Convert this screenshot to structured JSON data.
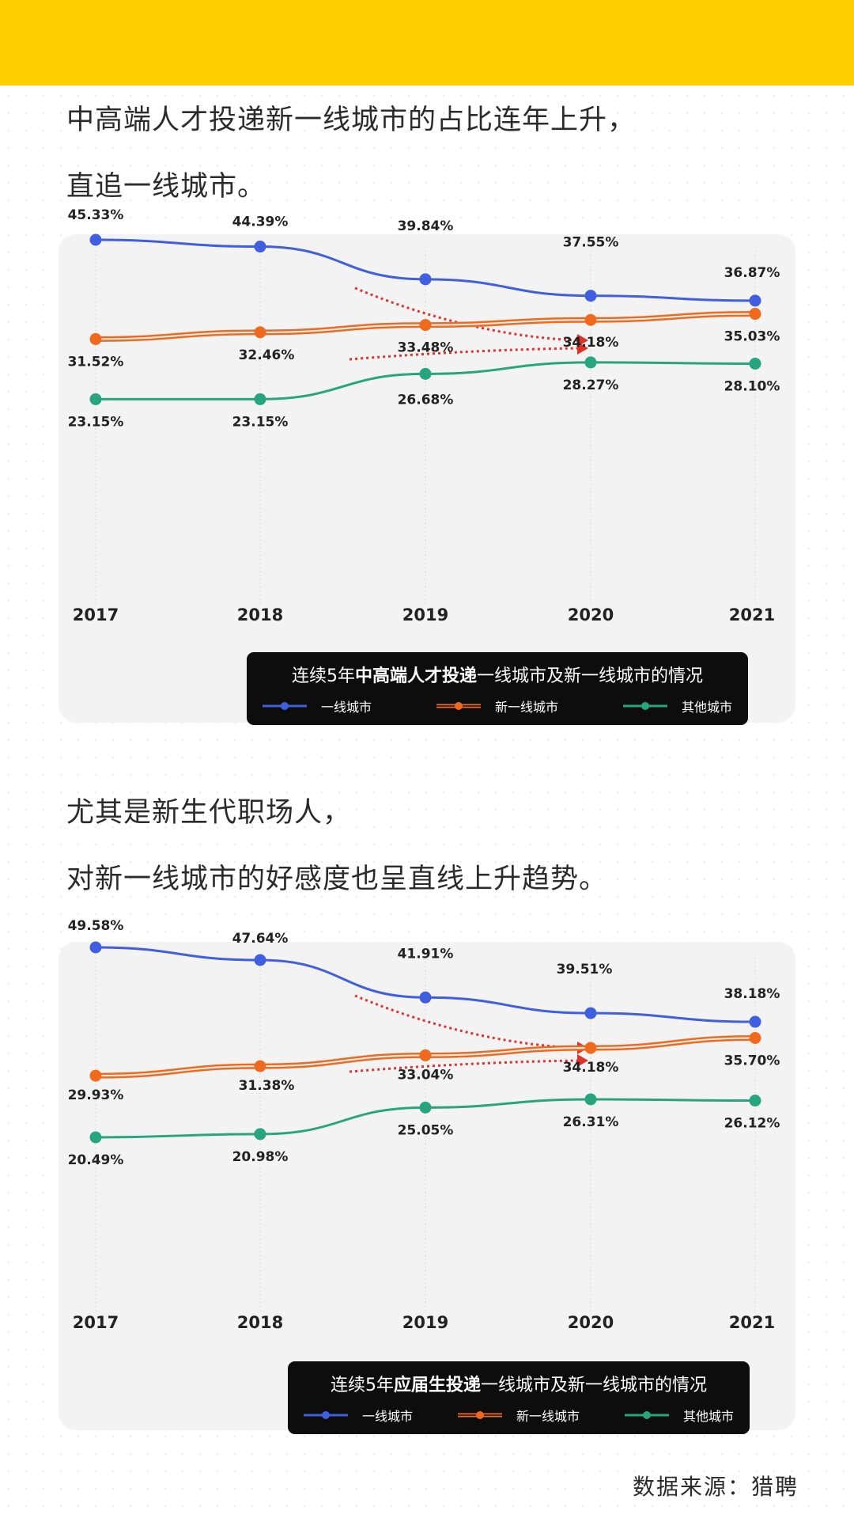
{
  "colors": {
    "top_bar": "#ffcf00",
    "first_tier": "#3f5fe0",
    "new_first_tier": "#f06a1e",
    "other": "#27a67d",
    "arrow": "#e0312b"
  },
  "para1": {
    "line1": "中高端人才投递新一线城市的占比连年上升，",
    "line2": "直追一线城市。"
  },
  "para2": {
    "line1": "尤其是新生代职场人，",
    "line2": "对新一线城市的好感度也呈直线上升趋势。"
  },
  "source": "数据来源：猎聘",
  "chart_data": [
    {
      "type": "line",
      "categories": [
        "2017",
        "2018",
        "2019",
        "2020",
        "2021"
      ],
      "series": [
        {
          "name": "一线城市",
          "values": [
            45.33,
            44.39,
            39.84,
            37.55,
            36.87
          ],
          "labels": [
            "45.33%",
            "44.39%",
            "39.84%",
            "37.55%",
            "36.87%"
          ]
        },
        {
          "name": "新一线城市",
          "values": [
            31.52,
            32.46,
            33.48,
            34.18,
            35.03
          ],
          "labels": [
            "31.52%",
            "32.46%",
            "33.48%",
            "34.18%",
            "35.03%"
          ]
        },
        {
          "name": "其他城市",
          "values": [
            23.15,
            23.15,
            26.68,
            28.27,
            28.1
          ],
          "labels": [
            "23.15%",
            "23.15%",
            "26.68%",
            "28.27%",
            "28.10%"
          ]
        }
      ],
      "legend_title": {
        "pre": "连续5年",
        "bold": "中高端人才投递",
        "post": "一线城市及新一线城市的情况"
      },
      "legend_position": "bottom-right"
    },
    {
      "type": "line",
      "categories": [
        "2017",
        "2018",
        "2019",
        "2020",
        "2021"
      ],
      "series": [
        {
          "name": "一线城市",
          "values": [
            49.58,
            47.64,
            41.91,
            39.51,
            38.18
          ],
          "labels": [
            "49.58%",
            "47.64%",
            "41.91%",
            "39.51%",
            "38.18%"
          ]
        },
        {
          "name": "新一线城市",
          "values": [
            29.93,
            31.38,
            33.04,
            34.18,
            35.7
          ],
          "labels": [
            "29.93%",
            "31.38%",
            "33.04%",
            "34.18%",
            "35.70%"
          ]
        },
        {
          "name": "其他城市",
          "values": [
            20.49,
            20.98,
            25.05,
            26.31,
            26.12
          ],
          "labels": [
            "20.49%",
            "20.98%",
            "25.05%",
            "26.31%",
            "26.12%"
          ]
        }
      ],
      "legend_title": {
        "pre": "连续5年",
        "bold": "应届生投递",
        "post": "一线城市及新一线城市的情况"
      },
      "legend_position": "bottom-right"
    }
  ]
}
